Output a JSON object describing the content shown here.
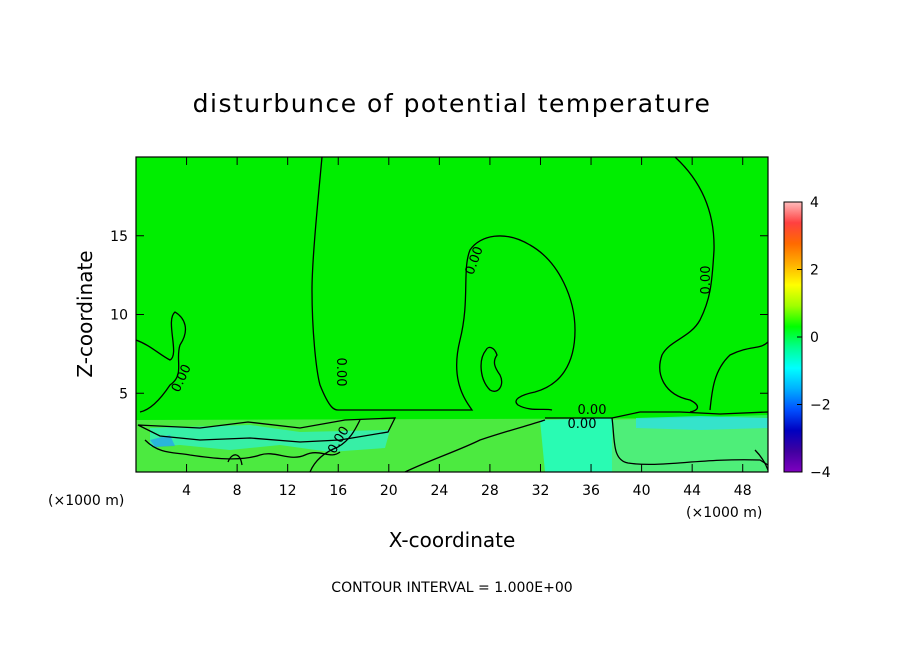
{
  "chart_data": {
    "type": "heatmap",
    "title": "disturbunce of potential temperature",
    "xlabel": "X-coordinate",
    "ylabel": "Z-coordinate",
    "x_unit_left": "(×1000 m)",
    "x_unit_right": "(×1000 m)",
    "xlim": [
      0,
      50
    ],
    "ylim": [
      0,
      20
    ],
    "x_ticks": [
      4,
      8,
      12,
      16,
      20,
      24,
      28,
      32,
      36,
      40,
      44,
      48
    ],
    "y_ticks": [
      5,
      10,
      15
    ],
    "colorbar": {
      "range": [
        -4,
        4
      ],
      "ticks": [
        4,
        2,
        0,
        -2,
        -4
      ],
      "tick_labels": [
        "4",
        "2",
        "0",
        "−2",
        "−4"
      ],
      "colors": [
        "#ffbcbc",
        "#ff4040",
        "#ff6a00",
        "#ffb000",
        "#ffff00",
        "#a0ff00",
        "#00ff00",
        "#00ff90",
        "#00ffff",
        "#00b0ff",
        "#0050ff",
        "#0000c0",
        "#4000a0",
        "#7f00c0"
      ]
    },
    "contour_interval": "CONTOUR INTERVAL = 1.000E+00",
    "contour_label": "0.00",
    "field_color": "#00ee00"
  }
}
